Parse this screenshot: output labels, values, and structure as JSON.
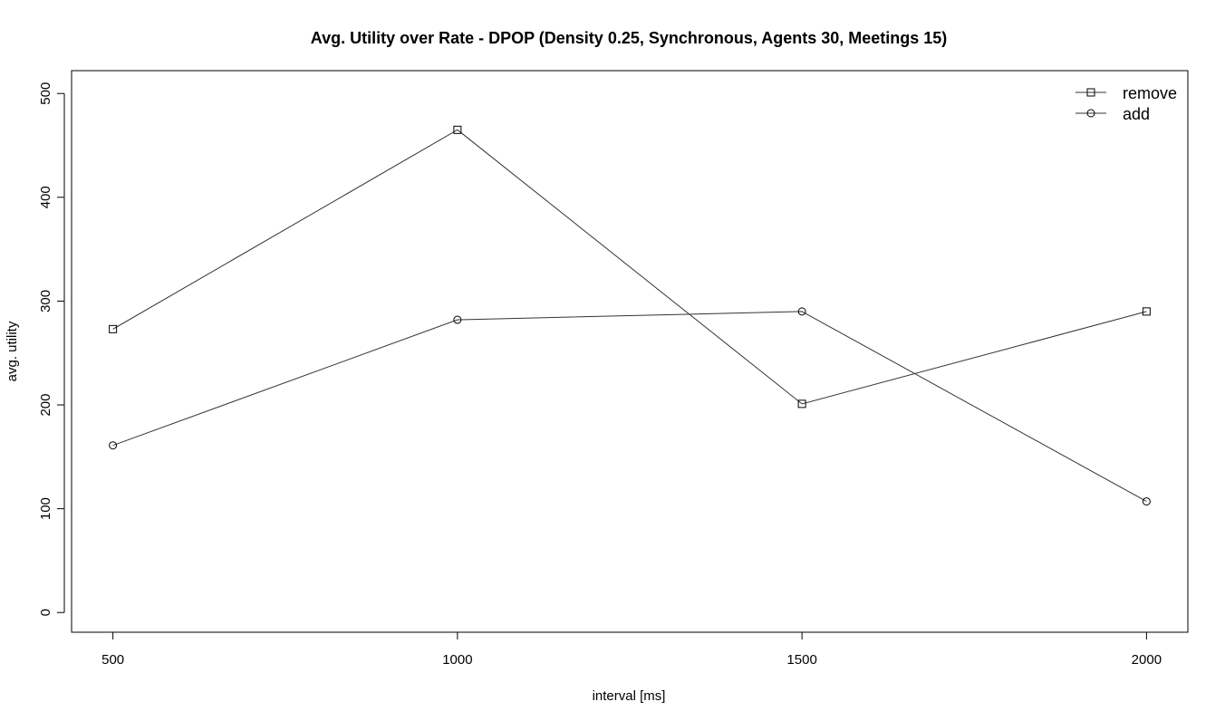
{
  "chart_data": {
    "type": "line",
    "title": "Avg. Utility over Rate - DPOP (Density 0.25, Synchronous, Agents 30, Meetings 15)",
    "xlabel": "interval [ms]",
    "ylabel": "avg. utility",
    "x": [
      500,
      1000,
      1500,
      2000
    ],
    "xticks": [
      500,
      1000,
      1500,
      2000
    ],
    "yticks": [
      0,
      100,
      200,
      300,
      400,
      500
    ],
    "xlim": [
      440,
      2060
    ],
    "ylim": [
      -19,
      522
    ],
    "grid": false,
    "legend_position": "top-right",
    "series": [
      {
        "name": "remove",
        "marker": "square",
        "values": [
          273,
          465,
          201,
          290
        ]
      },
      {
        "name": "add",
        "marker": "circle",
        "values": [
          161,
          282,
          290,
          107
        ]
      }
    ]
  }
}
